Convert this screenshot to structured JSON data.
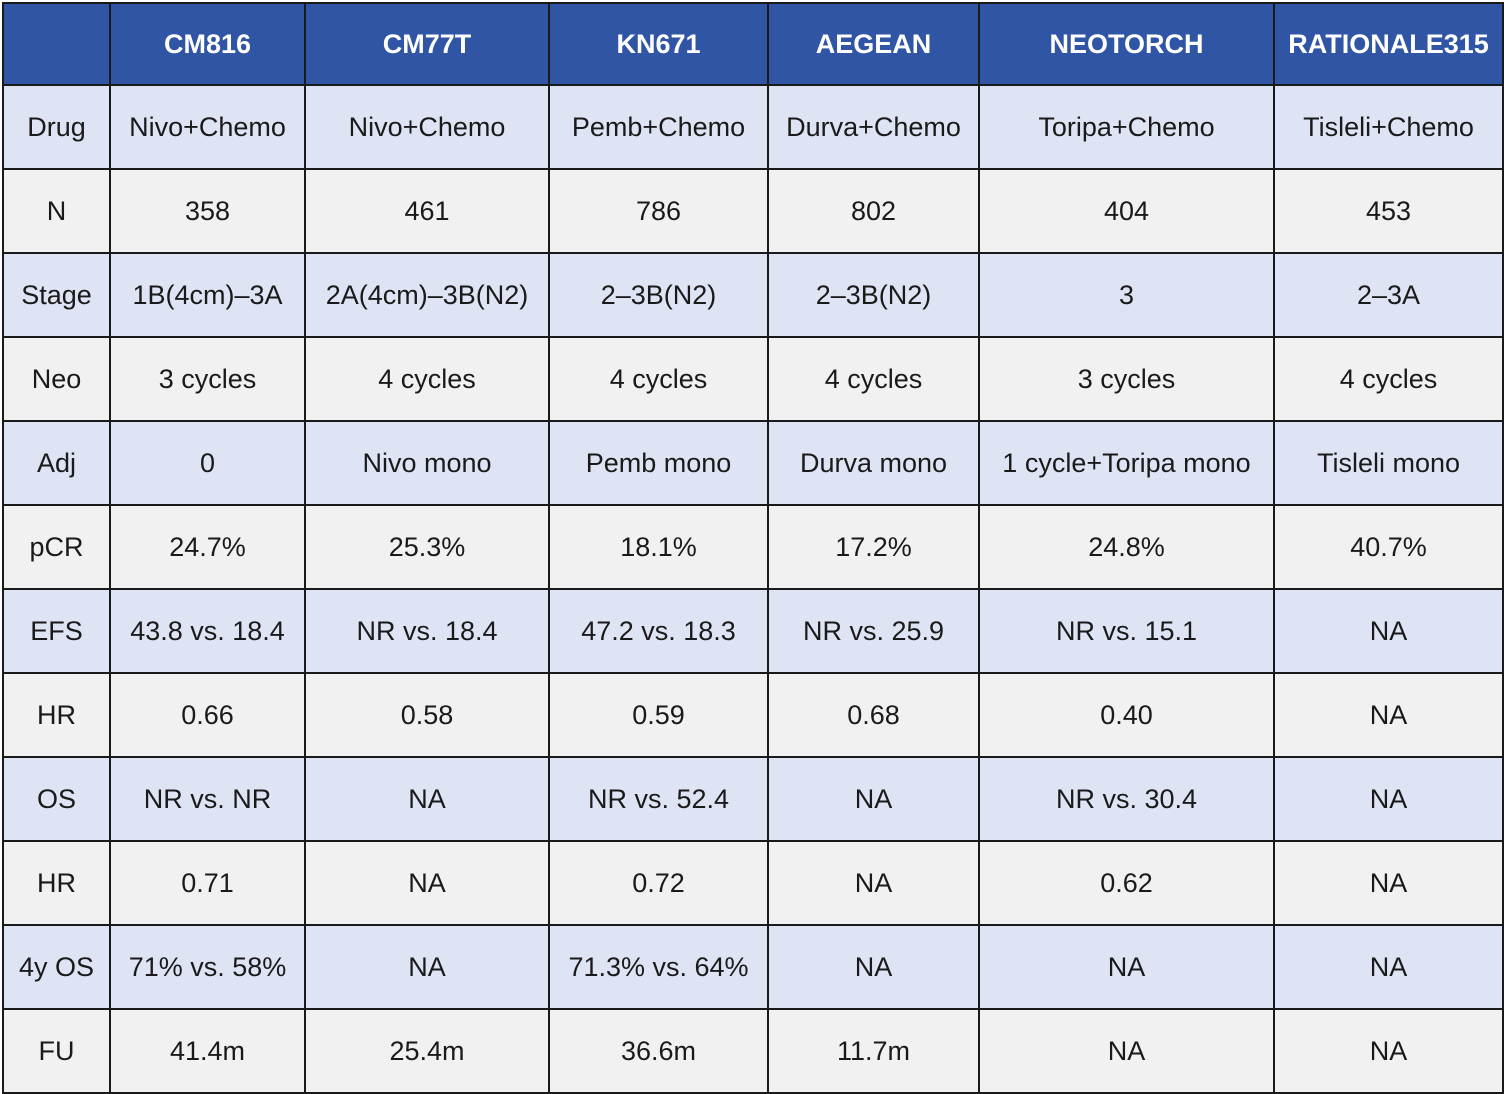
{
  "table": {
    "header": [
      "",
      "CM816",
      "CM77T",
      "KN671",
      "AEGEAN",
      "NEOTORCH",
      "RATIONALE315"
    ],
    "rows": [
      {
        "label": "Drug",
        "cells": [
          "Nivo+Chemo",
          "Nivo+Chemo",
          "Pemb+Chemo",
          "Durva+Chemo",
          "Toripa+Chemo",
          "Tisleli+Chemo"
        ]
      },
      {
        "label": "N",
        "cells": [
          "358",
          "461",
          "786",
          "802",
          "404",
          "453"
        ]
      },
      {
        "label": "Stage",
        "cells": [
          "1B(4cm)–3A",
          "2A(4cm)–3B(N2)",
          "2–3B(N2)",
          "2–3B(N2)",
          "3",
          "2–3A"
        ]
      },
      {
        "label": "Neo",
        "cells": [
          "3 cycles",
          "4 cycles",
          "4 cycles",
          "4 cycles",
          "3 cycles",
          "4 cycles"
        ]
      },
      {
        "label": "Adj",
        "cells": [
          "0",
          "Nivo mono",
          "Pemb mono",
          "Durva mono",
          "1 cycle+Toripa mono",
          "Tisleli mono"
        ]
      },
      {
        "label": "pCR",
        "cells": [
          "24.7%",
          "25.3%",
          "18.1%",
          "17.2%",
          "24.8%",
          "40.7%"
        ]
      },
      {
        "label": "EFS",
        "cells": [
          "43.8 vs. 18.4",
          "NR vs. 18.4",
          "47.2 vs. 18.3",
          "NR vs. 25.9",
          "NR vs. 15.1",
          "NA"
        ]
      },
      {
        "label": "HR",
        "cells": [
          "0.66",
          "0.58",
          "0.59",
          "0.68",
          "0.40",
          "NA"
        ]
      },
      {
        "label": "OS",
        "cells": [
          "NR vs. NR",
          "NA",
          "NR vs. 52.4",
          "NA",
          "NR vs. 30.4",
          "NA"
        ]
      },
      {
        "label": "HR",
        "cells": [
          "0.71",
          "NA",
          "0.72",
          "NA",
          "0.62",
          "NA"
        ]
      },
      {
        "label": "4y OS",
        "cells": [
          "71% vs. 58%",
          "NA",
          "71.3% vs. 64%",
          "NA",
          "NA",
          "NA"
        ]
      },
      {
        "label": "FU",
        "cells": [
          "41.4m",
          "25.4m",
          "36.6m",
          "11.7m",
          "NA",
          "NA"
        ]
      }
    ]
  },
  "colors": {
    "header_bg": "#2f55a4",
    "header_text": "#ffffff",
    "row_odd_bg": "#dfe4f5",
    "row_even_bg": "#f1f1f1",
    "grid_line": "#1a1a1a"
  }
}
